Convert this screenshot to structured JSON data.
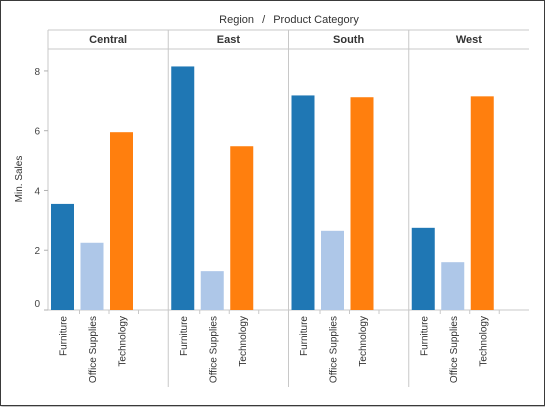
{
  "chart_data": {
    "type": "bar",
    "header": {
      "dim1": "Region",
      "separator": "/",
      "dim2": "Product Category"
    },
    "ylabel": "Min. Sales",
    "ylim": [
      0,
      8.6
    ],
    "yticks": [
      0,
      2,
      4,
      6,
      8
    ],
    "categories": [
      "Furniture",
      "Office Supplies",
      "Technology"
    ],
    "colors": {
      "Furniture": "#1f77b4",
      "Office Supplies": "#aec7e8",
      "Technology": "#ff7f0e"
    },
    "panes": [
      {
        "region": "Central",
        "values": [
          3.55,
          2.25,
          5.95
        ]
      },
      {
        "region": "East",
        "values": [
          8.15,
          1.3,
          5.48
        ]
      },
      {
        "region": "South",
        "values": [
          7.18,
          2.65,
          7.12
        ]
      },
      {
        "region": "West",
        "values": [
          2.75,
          1.6,
          7.15
        ]
      }
    ],
    "grid": false,
    "legend": "none"
  }
}
